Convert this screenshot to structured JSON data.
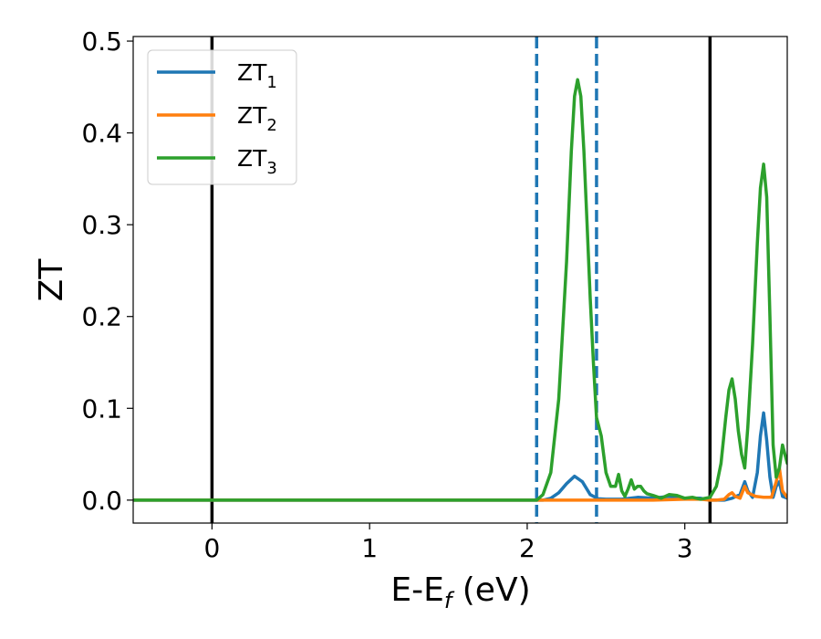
{
  "chart_data": {
    "type": "line",
    "xlabel": "E-E",
    "xlabel_sub": "f",
    "xlabel_unit": " (eV)",
    "ylabel": "ZT",
    "xlim": [
      -0.5,
      3.65
    ],
    "ylim": [
      -0.025,
      0.505
    ],
    "xticks": [
      0,
      1,
      2,
      3
    ],
    "xtick_labels": [
      "0",
      "1",
      "2",
      "3"
    ],
    "yticks": [
      0.0,
      0.1,
      0.2,
      0.3,
      0.4,
      0.5
    ],
    "ytick_labels": [
      "0.0",
      "0.1",
      "0.2",
      "0.3",
      "0.4",
      "0.5"
    ],
    "grid": false,
    "legend_position": "top-left",
    "vertical_lines": [
      {
        "x": 0.0,
        "style": "solid",
        "color": "#000000"
      },
      {
        "x": 3.16,
        "style": "solid",
        "color": "#000000"
      },
      {
        "x": 2.06,
        "style": "dashed",
        "color": "#1f77b4"
      },
      {
        "x": 2.44,
        "style": "dashed",
        "color": "#1f77b4"
      }
    ],
    "series": [
      {
        "name": "ZT",
        "sub": "1",
        "color": "#1f77b4",
        "x": [
          -0.5,
          2.0,
          2.1,
          2.15,
          2.2,
          2.25,
          2.3,
          2.35,
          2.4,
          2.45,
          2.5,
          2.6,
          2.7,
          2.8,
          2.9,
          3.0,
          3.1,
          3.16,
          3.2,
          3.25,
          3.3,
          3.35,
          3.38,
          3.4,
          3.43,
          3.46,
          3.48,
          3.5,
          3.52,
          3.54,
          3.56,
          3.58,
          3.6,
          3.62,
          3.65
        ],
        "y": [
          0.0,
          0.0,
          0.0,
          0.002,
          0.008,
          0.018,
          0.026,
          0.02,
          0.006,
          0.0015,
          0.001,
          0.001,
          0.003,
          0.002,
          0.004,
          0.002,
          0.002,
          0.0,
          0.0,
          0.0,
          0.002,
          0.006,
          0.02,
          0.01,
          0.003,
          0.03,
          0.07,
          0.095,
          0.065,
          0.025,
          0.003,
          0.015,
          0.02,
          0.004,
          0.002
        ]
      },
      {
        "name": "ZT",
        "sub": "2",
        "color": "#ff7f0e",
        "x": [
          -0.5,
          2.8,
          3.0,
          3.1,
          3.16,
          3.2,
          3.25,
          3.28,
          3.3,
          3.32,
          3.35,
          3.38,
          3.4,
          3.45,
          3.5,
          3.55,
          3.58,
          3.6,
          3.62,
          3.65
        ],
        "y": [
          0.0,
          0.0,
          0.001,
          0.001,
          0.0,
          0.0,
          0.001,
          0.006,
          0.008,
          0.004,
          0.002,
          0.015,
          0.008,
          0.004,
          0.003,
          0.003,
          0.02,
          0.035,
          0.01,
          0.003
        ]
      },
      {
        "name": "ZT",
        "sub": "3",
        "color": "#2ca02c",
        "x": [
          -0.5,
          2.06,
          2.1,
          2.15,
          2.2,
          2.25,
          2.28,
          2.3,
          2.32,
          2.34,
          2.36,
          2.38,
          2.4,
          2.42,
          2.44,
          2.47,
          2.5,
          2.53,
          2.56,
          2.58,
          2.6,
          2.62,
          2.64,
          2.66,
          2.68,
          2.7,
          2.72,
          2.74,
          2.76,
          2.8,
          2.85,
          2.9,
          2.95,
          3.0,
          3.05,
          3.1,
          3.16,
          3.2,
          3.23,
          3.26,
          3.28,
          3.3,
          3.32,
          3.34,
          3.36,
          3.38,
          3.4,
          3.43,
          3.46,
          3.48,
          3.5,
          3.52,
          3.54,
          3.56,
          3.58,
          3.6,
          3.62,
          3.65
        ],
        "y": [
          0.0,
          0.0,
          0.006,
          0.03,
          0.11,
          0.26,
          0.38,
          0.44,
          0.458,
          0.44,
          0.38,
          0.3,
          0.22,
          0.15,
          0.09,
          0.07,
          0.03,
          0.015,
          0.015,
          0.028,
          0.01,
          0.004,
          0.012,
          0.022,
          0.012,
          0.015,
          0.015,
          0.01,
          0.007,
          0.005,
          0.002,
          0.006,
          0.005,
          0.002,
          0.003,
          0.001,
          0.003,
          0.015,
          0.04,
          0.09,
          0.12,
          0.132,
          0.11,
          0.075,
          0.05,
          0.035,
          0.08,
          0.17,
          0.28,
          0.34,
          0.366,
          0.33,
          0.2,
          0.06,
          0.025,
          0.035,
          0.06,
          0.04
        ]
      }
    ]
  }
}
